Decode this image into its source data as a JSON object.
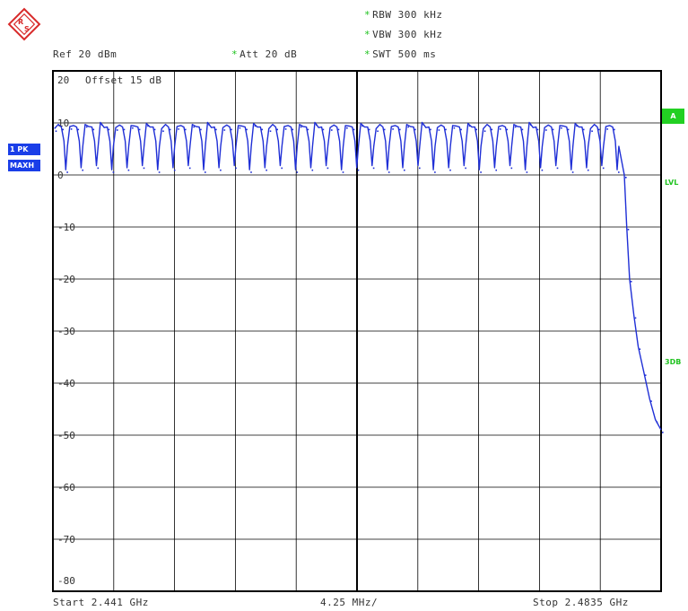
{
  "header": {
    "ref": "Ref  20 dBm",
    "att": "Att  20 dB",
    "rbw": "RBW 300 kHz",
    "vbw": "VBW 300 kHz",
    "swt": "SWT 500 ms"
  },
  "offset_label": "Offset  15 dB",
  "footer": {
    "start": "Start 2.441 GHz",
    "div": "4.25 MHz/",
    "stop": "Stop 2.4835 GHz"
  },
  "badges": {
    "trace": "1 PK",
    "mode": "MAXH",
    "a": "A",
    "lvl": "LVL",
    "db3": "3DB"
  },
  "colors": {
    "trace": "#1f2fd6",
    "grid": "#000000",
    "accent": "#22c322"
  },
  "chart_data": {
    "type": "line",
    "xlabel": "",
    "ylabel": "",
    "x_range_ghz": [
      2.441,
      2.4835
    ],
    "x_div": "4.25 MHz/",
    "ylim": [
      -80,
      20
    ],
    "yticks": [
      "20",
      "10",
      "0",
      "-10",
      "-20",
      "-30",
      "-40",
      "-50",
      "-60",
      "-70",
      "-80"
    ],
    "grid": true,
    "hop_channels": 37,
    "channel_peak_dbm": 9.5,
    "channel_dip_dbm": 1.0,
    "series": [
      {
        "x": [
          2.441,
          2.4428,
          2.4437,
          2.4446,
          2.4455,
          2.4464,
          2.4473,
          2.4482,
          2.4491,
          2.45,
          2.4509,
          2.4518,
          2.4527,
          2.4536,
          2.4545,
          2.4554,
          2.4563,
          2.4572,
          2.4581,
          2.459,
          2.4599,
          2.4608,
          2.4617,
          2.4626,
          2.4635,
          2.4644,
          2.4653,
          2.4662,
          2.4671,
          2.468,
          2.4689,
          2.4698,
          2.4707,
          2.4716,
          2.4725,
          2.4734,
          2.4743,
          2.4752,
          2.4761,
          2.477,
          2.4779,
          2.4788,
          2.4797,
          2.4806,
          2.48093,
          2.4811,
          2.4813,
          2.4816,
          2.4819,
          2.4823,
          2.4827,
          2.4831,
          2.4835
        ],
        "y": [
          9.0,
          9.5,
          1.0,
          9.5,
          1.0,
          9.5,
          1.0,
          9.5,
          1.0,
          9.5,
          1.0,
          9.5,
          1.0,
          9.5,
          1.0,
          9.5,
          1.0,
          9.5,
          1.0,
          9.5,
          1.0,
          9.5,
          1.0,
          9.5,
          1.0,
          9.5,
          1.0,
          9.5,
          1.0,
          9.5,
          1.0,
          9.5,
          1.0,
          9.5,
          1.0,
          9.5,
          1.0,
          9.5,
          1.0,
          9.5,
          1.0,
          9.5,
          1.0,
          9.5,
          0.0,
          -10.0,
          -20.0,
          -27.0,
          -33.0,
          -38.0,
          -43.0,
          -47.0,
          -49.0
        ]
      }
    ]
  }
}
